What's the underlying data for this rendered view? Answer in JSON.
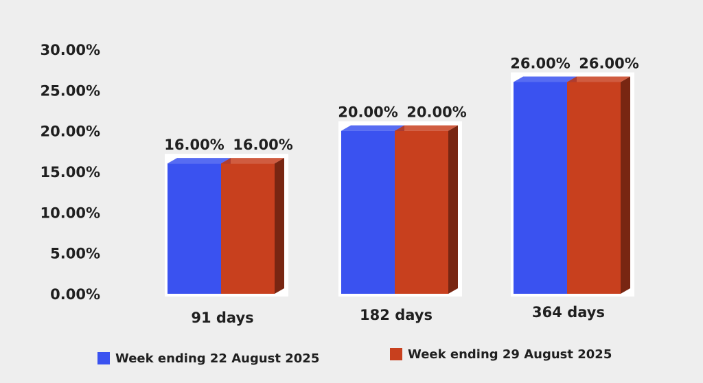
{
  "chart_data": {
    "type": "bar",
    "categories": [
      "91 days",
      "182 days",
      "364 days"
    ],
    "series": [
      {
        "name": "Week ending 22 August 2025",
        "values": [
          16.0,
          20.0,
          26.0
        ],
        "color": "#3a52f0"
      },
      {
        "name": "Week ending 29 August 2025",
        "values": [
          16.0,
          20.0,
          26.0
        ],
        "color": "#c8401e"
      }
    ],
    "data_labels": [
      [
        "16.00%",
        "20.00%",
        "26.00%"
      ],
      [
        "16.00%",
        "20.00%",
        "26.00%"
      ]
    ],
    "y_ticks": [
      "0.00%",
      "5.00%",
      "10.00%",
      "15.00%",
      "20.00%",
      "25.00%",
      "30.00%"
    ],
    "ylim": [
      0,
      30
    ],
    "grid": false,
    "legend_position": "bottom",
    "style": "3d-column"
  }
}
